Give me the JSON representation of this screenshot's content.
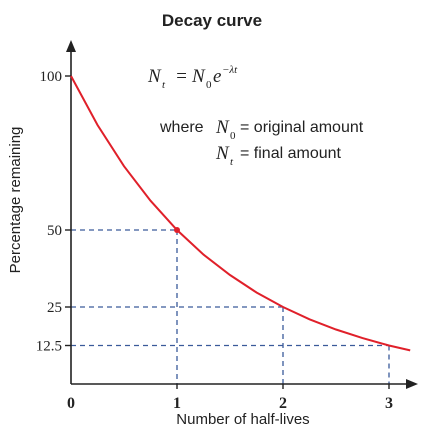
{
  "chart_data": {
    "type": "line",
    "title": "Decay curve",
    "xlabel": "Number of half-lives",
    "ylabel": "Percentage remaining",
    "x_ticks": [
      "0",
      "1",
      "2",
      "3"
    ],
    "y_ticks": [
      "100",
      "50",
      "25",
      "12.5"
    ],
    "xlim": [
      0,
      3.2
    ],
    "ylim": [
      0,
      100
    ],
    "series": [
      {
        "color": "#e0202a",
        "x": [
          0,
          0.25,
          0.5,
          0.75,
          1,
          1.25,
          1.5,
          1.75,
          2,
          2.25,
          2.5,
          2.75,
          3,
          3.2
        ],
        "y": [
          100,
          84.1,
          70.7,
          59.5,
          50,
          42.0,
          35.4,
          29.7,
          25,
          21.0,
          17.7,
          14.9,
          12.5,
          10.9
        ]
      }
    ],
    "highlight_point": {
      "x": 1,
      "y": 50
    },
    "guide_lines": [
      {
        "x": 1,
        "y": 50
      },
      {
        "x": 2,
        "y": 25
      },
      {
        "x": 3,
        "y": 12.5
      }
    ],
    "equation": {
      "N": "N",
      "t": "t",
      "zero": "0",
      "equals": "=",
      "e": "e",
      "exponent": "−λt"
    },
    "annotations": {
      "where": "where",
      "original": "= original amount",
      "final": "= final amount"
    },
    "colors": {
      "curve": "#e0202a",
      "axis": "#222222",
      "guide": "#3a5a9a"
    }
  }
}
